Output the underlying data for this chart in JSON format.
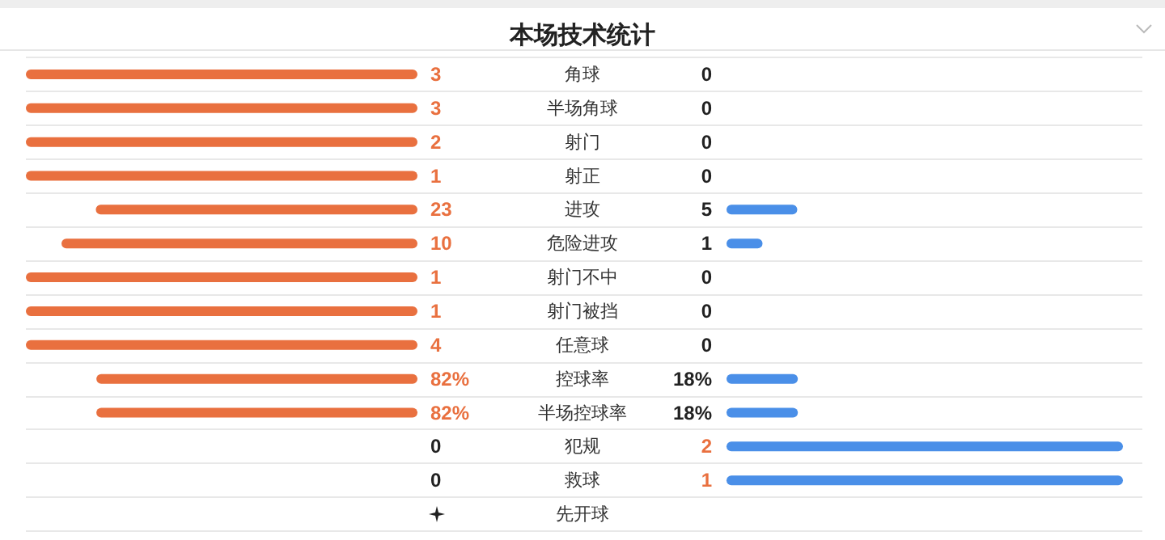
{
  "chart_data": {
    "type": "other",
    "title": "本场技术统计",
    "categories": [
      "角球",
      "半场角球",
      "射门",
      "射正",
      "进攻",
      "危险进攻",
      "射门不中",
      "射门被挡",
      "任意球",
      "控球率",
      "半场控球率",
      "犯规",
      "救球",
      "先开球"
    ],
    "series": [
      {
        "color": "#e9703f",
        "values": [
          3,
          3,
          2,
          1,
          23,
          10,
          1,
          1,
          4,
          82,
          82,
          0,
          0,
          null
        ],
        "value_labels": [
          "3",
          "3",
          "2",
          "1",
          "23",
          "10",
          "1",
          "1",
          "4",
          "82%",
          "82%",
          "0",
          "0",
          null
        ]
      },
      {
        "color": "#4a8fe8",
        "values": [
          0,
          0,
          0,
          0,
          5,
          1,
          0,
          0,
          0,
          18,
          18,
          2,
          1,
          null
        ],
        "value_labels": [
          "0",
          "0",
          "0",
          "0",
          "5",
          "1",
          "0",
          "0",
          "0",
          "18%",
          "18%",
          "2",
          "1",
          null
        ]
      }
    ]
  }
}
